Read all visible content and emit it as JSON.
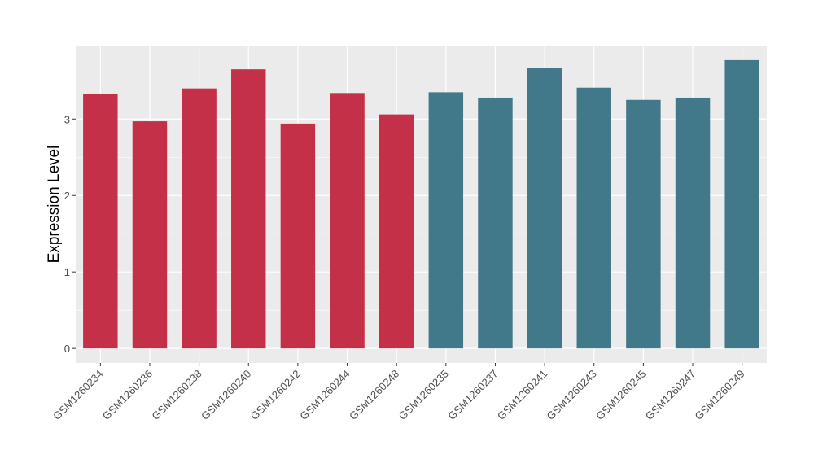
{
  "chart_data": {
    "type": "bar",
    "title": "",
    "xlabel": "",
    "ylabel": "Expression Level",
    "ylim": [
      -0.19,
      3.95
    ],
    "yticks": [
      0,
      1,
      2,
      3
    ],
    "grid": true,
    "categories": [
      "GSM1260234",
      "GSM1260236",
      "GSM1260238",
      "GSM1260240",
      "GSM1260242",
      "GSM1260244",
      "GSM1260248",
      "GSM1260235",
      "GSM1260237",
      "GSM1260241",
      "GSM1260243",
      "GSM1260245",
      "GSM1260247",
      "GSM1260249"
    ],
    "values": [
      3.33,
      2.97,
      3.4,
      3.65,
      2.94,
      3.34,
      3.06,
      3.35,
      3.28,
      3.67,
      3.41,
      3.25,
      3.28,
      3.77
    ],
    "groups": [
      0,
      0,
      0,
      0,
      0,
      0,
      0,
      1,
      1,
      1,
      1,
      1,
      1,
      1
    ],
    "colors": [
      "#C33047",
      "#41798A"
    ]
  }
}
